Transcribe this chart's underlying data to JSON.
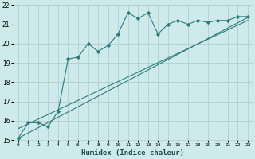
{
  "xlabel": "Humidex (Indice chaleur)",
  "ylabel": "",
  "xlim": [
    -0.5,
    23.5
  ],
  "ylim": [
    15,
    22
  ],
  "bg_color": "#ceeaea",
  "grid_color": "#b0d0d0",
  "line_color": "#2e7d7d",
  "line1_x": [
    0,
    1,
    2,
    3,
    4,
    5,
    6,
    7,
    8,
    9,
    10,
    11,
    12,
    13,
    14,
    15,
    16,
    17,
    18,
    19,
    20,
    21,
    22,
    23
  ],
  "line1_y": [
    15.1,
    15.9,
    15.9,
    15.7,
    16.5,
    19.2,
    19.3,
    20.0,
    19.6,
    19.9,
    20.5,
    21.6,
    21.3,
    21.6,
    20.5,
    21.0,
    21.2,
    21.0,
    21.2,
    21.1,
    21.2,
    21.2,
    21.4,
    21.4
  ],
  "line2_x": [
    0,
    23
  ],
  "line2_y": [
    15.1,
    21.35
  ],
  "line3_x": [
    0,
    23
  ],
  "line3_y": [
    15.6,
    21.2
  ],
  "yticks": [
    15,
    16,
    17,
    18,
    19,
    20,
    21,
    22
  ],
  "xticks": [
    0,
    1,
    2,
    3,
    4,
    5,
    6,
    7,
    8,
    9,
    10,
    11,
    12,
    13,
    14,
    15,
    16,
    17,
    18,
    19,
    20,
    21,
    22,
    23
  ]
}
